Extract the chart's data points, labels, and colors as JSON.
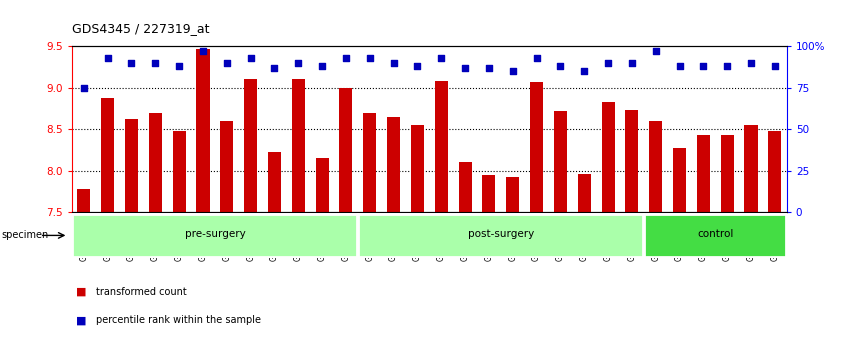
{
  "title": "GDS4345 / 227319_at",
  "samples": [
    "GSM842012",
    "GSM842013",
    "GSM842014",
    "GSM842015",
    "GSM842016",
    "GSM842017",
    "GSM842018",
    "GSM842019",
    "GSM842020",
    "GSM842021",
    "GSM842022",
    "GSM842023",
    "GSM842024",
    "GSM842025",
    "GSM842026",
    "GSM842027",
    "GSM842028",
    "GSM842029",
    "GSM842030",
    "GSM842031",
    "GSM842032",
    "GSM842033",
    "GSM842034",
    "GSM842035",
    "GSM842036",
    "GSM842037",
    "GSM842038",
    "GSM842039",
    "GSM842040",
    "GSM842041"
  ],
  "transformed_count": [
    7.78,
    8.88,
    8.62,
    8.7,
    8.48,
    9.47,
    8.6,
    9.1,
    8.23,
    9.1,
    8.15,
    9.0,
    8.7,
    8.65,
    8.55,
    9.08,
    8.1,
    7.95,
    7.92,
    9.07,
    8.72,
    7.96,
    8.83,
    8.73,
    8.6,
    8.28,
    8.43,
    8.43,
    8.55,
    8.48
  ],
  "percentile_rank": [
    75,
    93,
    90,
    90,
    88,
    97,
    90,
    93,
    87,
    90,
    88,
    93,
    93,
    90,
    88,
    93,
    87,
    87,
    85,
    93,
    88,
    85,
    90,
    90,
    97,
    88,
    88,
    88,
    90,
    88
  ],
  "group_configs": [
    {
      "name": "pre-surgery",
      "start": 0,
      "end": 11,
      "color": "#aaffaa"
    },
    {
      "name": "post-surgery",
      "start": 12,
      "end": 23,
      "color": "#aaffaa"
    },
    {
      "name": "control",
      "start": 24,
      "end": 29,
      "color": "#44dd44"
    }
  ],
  "bar_color": "#CC0000",
  "dot_color": "#0000BB",
  "ylim_left": [
    7.5,
    9.5
  ],
  "ylim_right": [
    0,
    100
  ],
  "yticks_left": [
    7.5,
    8.0,
    8.5,
    9.0,
    9.5
  ],
  "yticks_right": [
    0,
    25,
    50,
    75,
    100
  ],
  "ytick_labels_right": [
    "0",
    "25",
    "50",
    "75",
    "100%"
  ],
  "grid_values": [
    8.0,
    8.5,
    9.0
  ],
  "legend_items": [
    {
      "label": "transformed count",
      "color": "#CC0000"
    },
    {
      "label": "percentile rank within the sample",
      "color": "#0000BB"
    }
  ],
  "specimen_label": "specimen",
  "bg_color": "#FFFFFF",
  "tick_bg_color": "#C8C8C8"
}
